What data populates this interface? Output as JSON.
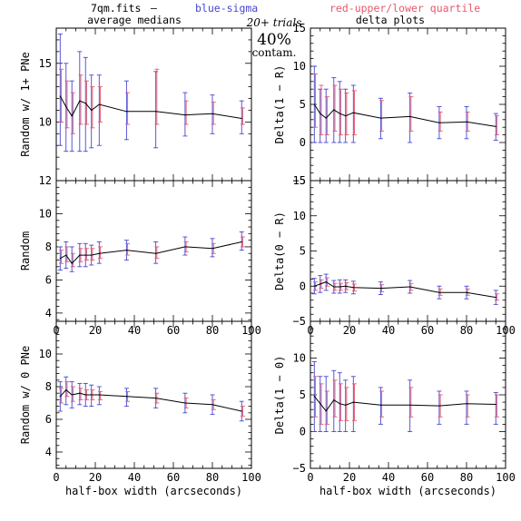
{
  "header": {
    "filename": "7qm.fits",
    "dash": "—",
    "blue_label": "blue-sigma",
    "red_label": "red-upper/lower quartile",
    "left_title": "average medians",
    "right_title": "delta plots",
    "trials": "20+ trials",
    "contam_pct": "40%",
    "contam_word": "contam."
  },
  "colors": {
    "blue": "#4646d0",
    "red": "#e8586a",
    "line": "#000000"
  },
  "chart_data": [
    {
      "type": "line",
      "panel": "left-top",
      "ylabel": "Random w/ 1+ PNe",
      "xlabel": "",
      "xlim": [
        0,
        100
      ],
      "ylim": [
        5,
        18
      ],
      "xticks": [
        "0",
        "20",
        "40",
        "60",
        "80",
        "100"
      ],
      "xticks_visible": false,
      "yticks": [
        "10",
        "15"
      ],
      "ytick_values": [
        10,
        15
      ],
      "x": [
        2,
        5,
        8,
        12,
        15,
        18,
        22,
        36,
        51,
        66,
        80,
        95
      ],
      "values": [
        12.2,
        11.3,
        10.5,
        11.8,
        11.6,
        11.0,
        11.5,
        10.9,
        10.9,
        10.6,
        10.7,
        10.3
      ],
      "sigma": [
        [
          8.0,
          17.5
        ],
        [
          7.5,
          15.0
        ],
        [
          7.5,
          13.5
        ],
        [
          7.5,
          16.0
        ],
        [
          7.5,
          15.5
        ],
        [
          7.8,
          14.0
        ],
        [
          8.0,
          14.0
        ],
        [
          8.5,
          13.5
        ],
        [
          7.8,
          14.3
        ],
        [
          8.8,
          12.5
        ],
        [
          9.0,
          12.3
        ],
        [
          9.0,
          11.8
        ]
      ],
      "quartile": [
        [
          10.0,
          14.5
        ],
        [
          9.5,
          13.5
        ],
        [
          9.0,
          12.5
        ],
        [
          9.8,
          14.0
        ],
        [
          9.8,
          13.5
        ],
        [
          9.5,
          13.0
        ],
        [
          10.0,
          13.0
        ],
        [
          9.8,
          12.5
        ],
        [
          9.8,
          14.5
        ],
        [
          9.8,
          11.8
        ],
        [
          9.8,
          11.7
        ],
        [
          9.8,
          11.2
        ]
      ]
    },
    {
      "type": "line",
      "panel": "left-middle",
      "ylabel": "Random",
      "xlabel": "",
      "xlim": [
        0,
        100
      ],
      "ylim": [
        3.5,
        12
      ],
      "xticks": [
        "0",
        "20",
        "40",
        "60",
        "80",
        "100"
      ],
      "xticks_visible": true,
      "yticks": [
        "4",
        "6",
        "8",
        "10",
        "12"
      ],
      "ytick_values": [
        4,
        6,
        8,
        10,
        12
      ],
      "x": [
        2,
        5,
        8,
        12,
        15,
        18,
        22,
        36,
        51,
        66,
        80,
        95
      ],
      "values": [
        7.3,
        7.5,
        7.0,
        7.5,
        7.5,
        7.5,
        7.6,
        7.8,
        7.6,
        8.0,
        7.9,
        8.3
      ],
      "sigma": [
        [
          6.6,
          8.0
        ],
        [
          6.7,
          8.3
        ],
        [
          6.5,
          8.0
        ],
        [
          6.8,
          8.2
        ],
        [
          6.8,
          8.2
        ],
        [
          6.9,
          8.1
        ],
        [
          7.0,
          8.3
        ],
        [
          7.2,
          8.4
        ],
        [
          7.0,
          8.3
        ],
        [
          7.5,
          8.6
        ],
        [
          7.4,
          8.5
        ],
        [
          7.8,
          8.9
        ]
      ],
      "quartile": [
        [
          7.0,
          7.8
        ],
        [
          7.1,
          8.0
        ],
        [
          6.8,
          7.6
        ],
        [
          7.1,
          7.9
        ],
        [
          7.2,
          7.9
        ],
        [
          7.2,
          7.9
        ],
        [
          7.3,
          8.0
        ],
        [
          7.5,
          8.2
        ],
        [
          7.3,
          8.0
        ],
        [
          7.7,
          8.3
        ],
        [
          7.6,
          8.2
        ],
        [
          8.0,
          8.6
        ]
      ]
    },
    {
      "type": "line",
      "panel": "left-bottom",
      "ylabel": "Random w/ 0 PNe",
      "xlabel": "half-box width (arcseconds)",
      "xlim": [
        0,
        100
      ],
      "ylim": [
        3,
        12
      ],
      "xticks": [
        "0",
        "20",
        "40",
        "60",
        "80",
        "100"
      ],
      "xticks_visible": true,
      "yticks": [
        "4",
        "6",
        "8",
        "10"
      ],
      "ytick_values": [
        4,
        6,
        8,
        10
      ],
      "x": [
        2,
        5,
        8,
        12,
        15,
        18,
        22,
        36,
        51,
        66,
        80,
        95
      ],
      "values": [
        7.4,
        7.8,
        7.5,
        7.6,
        7.5,
        7.5,
        7.5,
        7.4,
        7.3,
        7.0,
        6.9,
        6.5
      ],
      "sigma": [
        [
          6.5,
          8.3
        ],
        [
          6.9,
          8.6
        ],
        [
          6.7,
          8.3
        ],
        [
          6.9,
          8.2
        ],
        [
          6.8,
          8.2
        ],
        [
          6.8,
          8.1
        ],
        [
          6.9,
          8.0
        ],
        [
          6.8,
          7.9
        ],
        [
          6.7,
          7.9
        ],
        [
          6.4,
          7.6
        ],
        [
          6.3,
          7.5
        ],
        [
          5.9,
          7.1
        ]
      ],
      "quartile": [
        [
          7.0,
          7.9
        ],
        [
          7.4,
          8.3
        ],
        [
          7.1,
          8.0
        ],
        [
          7.2,
          7.9
        ],
        [
          7.2,
          7.8
        ],
        [
          7.2,
          7.8
        ],
        [
          7.2,
          7.7
        ],
        [
          7.1,
          7.7
        ],
        [
          7.0,
          7.6
        ],
        [
          6.7,
          7.3
        ],
        [
          6.6,
          7.2
        ],
        [
          6.2,
          6.8
        ]
      ]
    },
    {
      "type": "line",
      "panel": "right-top",
      "ylabel": "Delta(1 − R)",
      "xlabel": "",
      "xlim": [
        0,
        100
      ],
      "ylim": [
        -5,
        15
      ],
      "xticks": [
        "0",
        "20",
        "40",
        "60",
        "80",
        "100"
      ],
      "xticks_visible": false,
      "yticks": [
        "−5",
        "0",
        "5",
        "10",
        "15"
      ],
      "ytick_values": [
        -5,
        0,
        5,
        10,
        15
      ],
      "x": [
        2,
        5,
        8,
        12,
        15,
        18,
        22,
        36,
        51,
        66,
        80,
        95
      ],
      "values": [
        5.0,
        3.8,
        3.2,
        4.3,
        3.8,
        3.5,
        3.9,
        3.2,
        3.4,
        2.6,
        2.7,
        2.1
      ],
      "sigma": [
        [
          0.0,
          10.0
        ],
        [
          0.0,
          7.0
        ],
        [
          0.0,
          7.0
        ],
        [
          0.0,
          8.5
        ],
        [
          0.0,
          8.0
        ],
        [
          0.0,
          7.0
        ],
        [
          0.0,
          7.5
        ],
        [
          0.5,
          5.8
        ],
        [
          0.0,
          6.5
        ],
        [
          0.5,
          4.7
        ],
        [
          0.5,
          4.7
        ],
        [
          0.3,
          3.8
        ]
      ],
      "quartile": [
        [
          2.0,
          9.0
        ],
        [
          1.0,
          7.5
        ],
        [
          1.0,
          6.0
        ],
        [
          1.5,
          7.5
        ],
        [
          1.0,
          7.0
        ],
        [
          1.0,
          6.5
        ],
        [
          1.0,
          6.8
        ],
        [
          1.5,
          5.5
        ],
        [
          1.5,
          6.0
        ],
        [
          1.5,
          4.0
        ],
        [
          1.5,
          4.0
        ],
        [
          1.0,
          3.5
        ]
      ]
    },
    {
      "type": "line",
      "panel": "right-middle",
      "ylabel": "Delta(0 − R)",
      "xlabel": "",
      "xlim": [
        0,
        100
      ],
      "ylim": [
        -5,
        15
      ],
      "xticks": [
        "0",
        "20",
        "40",
        "60",
        "80",
        "100"
      ],
      "xticks_visible": true,
      "yticks": [
        "−5",
        "0",
        "5",
        "10",
        "15"
      ],
      "ytick_values": [
        -5,
        0,
        5,
        10,
        15
      ],
      "x": [
        2,
        5,
        8,
        12,
        15,
        18,
        22,
        36,
        51,
        66,
        80,
        95
      ],
      "values": [
        0.0,
        0.3,
        0.6,
        -0.1,
        -0.1,
        0.0,
        -0.2,
        -0.3,
        -0.1,
        -0.9,
        -0.9,
        -1.6
      ],
      "sigma": [
        [
          -1.1,
          1.1
        ],
        [
          -0.9,
          1.5
        ],
        [
          -0.6,
          1.7
        ],
        [
          -1.0,
          0.8
        ],
        [
          -1.0,
          0.9
        ],
        [
          -0.9,
          0.9
        ],
        [
          -1.1,
          0.7
        ],
        [
          -1.2,
          0.6
        ],
        [
          -1.0,
          0.8
        ],
        [
          -1.8,
          0.0
        ],
        [
          -1.8,
          0.0
        ],
        [
          -2.6,
          -0.6
        ]
      ],
      "quartile": [
        [
          -0.6,
          0.6
        ],
        [
          -0.3,
          0.9
        ],
        [
          0.0,
          1.2
        ],
        [
          -0.6,
          0.4
        ],
        [
          -0.6,
          0.4
        ],
        [
          -0.5,
          0.5
        ],
        [
          -0.7,
          0.3
        ],
        [
          -0.8,
          0.2
        ],
        [
          -0.6,
          0.4
        ],
        [
          -1.3,
          -0.4
        ],
        [
          -1.3,
          -0.4
        ],
        [
          -2.0,
          -1.1
        ]
      ]
    },
    {
      "type": "line",
      "panel": "right-bottom",
      "ylabel": "Delta(1 − 0)",
      "xlabel": "half-box width (arcseconds)",
      "xlim": [
        0,
        100
      ],
      "ylim": [
        -5,
        15
      ],
      "xticks": [
        "0",
        "20",
        "40",
        "60",
        "80",
        "100"
      ],
      "xticks_visible": true,
      "yticks": [
        "−5",
        "0",
        "5",
        "10"
      ],
      "ytick_values": [
        -5,
        0,
        5,
        10
      ],
      "x": [
        2,
        5,
        8,
        12,
        15,
        18,
        22,
        36,
        51,
        66,
        80,
        95
      ],
      "values": [
        4.8,
        3.8,
        2.8,
        4.3,
        3.8,
        3.6,
        4.0,
        3.6,
        3.6,
        3.5,
        3.8,
        3.7
      ],
      "sigma": [
        [
          0.0,
          9.5
        ],
        [
          0.0,
          7.5
        ],
        [
          0.0,
          7.5
        ],
        [
          0.0,
          8.3
        ],
        [
          0.0,
          8.0
        ],
        [
          0.0,
          7.0
        ],
        [
          0.0,
          7.5
        ],
        [
          1.0,
          6.0
        ],
        [
          0.0,
          7.0
        ],
        [
          1.0,
          5.5
        ],
        [
          1.0,
          5.5
        ],
        [
          1.0,
          5.3
        ]
      ],
      "quartile": [
        [
          2.0,
          7.5
        ],
        [
          1.0,
          6.5
        ],
        [
          1.0,
          5.5
        ],
        [
          2.0,
          7.0
        ],
        [
          1.5,
          6.5
        ],
        [
          1.5,
          6.0
        ],
        [
          1.5,
          6.5
        ],
        [
          2.0,
          5.5
        ],
        [
          2.0,
          6.0
        ],
        [
          2.0,
          5.0
        ],
        [
          2.0,
          5.0
        ],
        [
          2.0,
          5.0
        ]
      ]
    }
  ]
}
